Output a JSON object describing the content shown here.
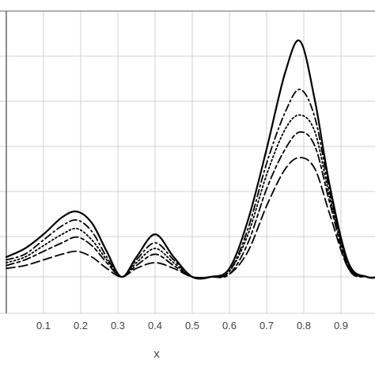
{
  "chart_data": {
    "type": "line",
    "xlabel": "x",
    "ylabel": "",
    "xlim": [
      0.0,
      1.0
    ],
    "ylim": [
      0.0,
      1.0
    ],
    "xticks": [
      "0.1",
      "0.2",
      "0.3",
      "0.4",
      "0.5",
      "0.6",
      "0.7",
      "0.8",
      "0.9"
    ],
    "grid": true,
    "legend": "none",
    "series": [
      {
        "style": "solid",
        "x": [
          0.0,
          0.05,
          0.1,
          0.15,
          0.19,
          0.23,
          0.27,
          0.31,
          0.35,
          0.4,
          0.45,
          0.5,
          0.55,
          0.6,
          0.65,
          0.7,
          0.75,
          0.79,
          0.83,
          0.87,
          0.92,
          0.97,
          1.0
        ],
        "y": [
          0.07,
          0.1,
          0.15,
          0.21,
          0.23,
          0.19,
          0.09,
          0.0,
          0.07,
          0.15,
          0.07,
          0.0,
          0.0,
          0.03,
          0.2,
          0.45,
          0.72,
          0.83,
          0.62,
          0.32,
          0.05,
          0.0,
          0.0
        ]
      },
      {
        "style": "dash-dot",
        "x": [
          0.0,
          0.05,
          0.1,
          0.15,
          0.19,
          0.23,
          0.27,
          0.31,
          0.35,
          0.4,
          0.45,
          0.5,
          0.55,
          0.6,
          0.65,
          0.7,
          0.75,
          0.79,
          0.83,
          0.87,
          0.92,
          0.97,
          1.0
        ],
        "y": [
          0.06,
          0.08,
          0.13,
          0.18,
          0.2,
          0.16,
          0.07,
          0.0,
          0.06,
          0.12,
          0.06,
          0.0,
          0.0,
          0.02,
          0.17,
          0.4,
          0.58,
          0.66,
          0.56,
          0.3,
          0.04,
          0.0,
          0.0
        ]
      },
      {
        "style": "dotted",
        "x": [
          0.0,
          0.05,
          0.1,
          0.15,
          0.19,
          0.23,
          0.27,
          0.31,
          0.35,
          0.4,
          0.45,
          0.5,
          0.55,
          0.6,
          0.65,
          0.7,
          0.75,
          0.79,
          0.83,
          0.87,
          0.92,
          0.97,
          1.0
        ],
        "y": [
          0.05,
          0.07,
          0.11,
          0.15,
          0.17,
          0.13,
          0.06,
          0.0,
          0.05,
          0.1,
          0.05,
          0.0,
          0.0,
          0.02,
          0.15,
          0.36,
          0.52,
          0.57,
          0.51,
          0.28,
          0.04,
          0.0,
          0.0
        ]
      },
      {
        "style": "long-dash-short-dash",
        "x": [
          0.0,
          0.05,
          0.1,
          0.15,
          0.19,
          0.23,
          0.27,
          0.31,
          0.35,
          0.4,
          0.45,
          0.5,
          0.55,
          0.6,
          0.65,
          0.7,
          0.75,
          0.79,
          0.83,
          0.87,
          0.92,
          0.97,
          1.0
        ],
        "y": [
          0.04,
          0.06,
          0.09,
          0.12,
          0.14,
          0.11,
          0.05,
          0.0,
          0.04,
          0.08,
          0.04,
          0.0,
          0.0,
          0.01,
          0.12,
          0.31,
          0.45,
          0.51,
          0.46,
          0.26,
          0.03,
          0.0,
          0.0
        ]
      },
      {
        "style": "long-dash",
        "x": [
          0.0,
          0.05,
          0.1,
          0.15,
          0.19,
          0.23,
          0.27,
          0.31,
          0.35,
          0.4,
          0.45,
          0.5,
          0.55,
          0.6,
          0.65,
          0.7,
          0.75,
          0.79,
          0.83,
          0.87,
          0.92,
          0.97,
          1.0
        ],
        "y": [
          0.03,
          0.04,
          0.06,
          0.08,
          0.09,
          0.07,
          0.03,
          0.0,
          0.03,
          0.05,
          0.03,
          0.0,
          0.0,
          0.01,
          0.09,
          0.25,
          0.38,
          0.42,
          0.38,
          0.22,
          0.03,
          0.0,
          0.0
        ]
      }
    ],
    "colors": {
      "line": "#000000",
      "grid": "#d0d0d0",
      "axis": "#404040",
      "tick_text": "#404040"
    }
  }
}
